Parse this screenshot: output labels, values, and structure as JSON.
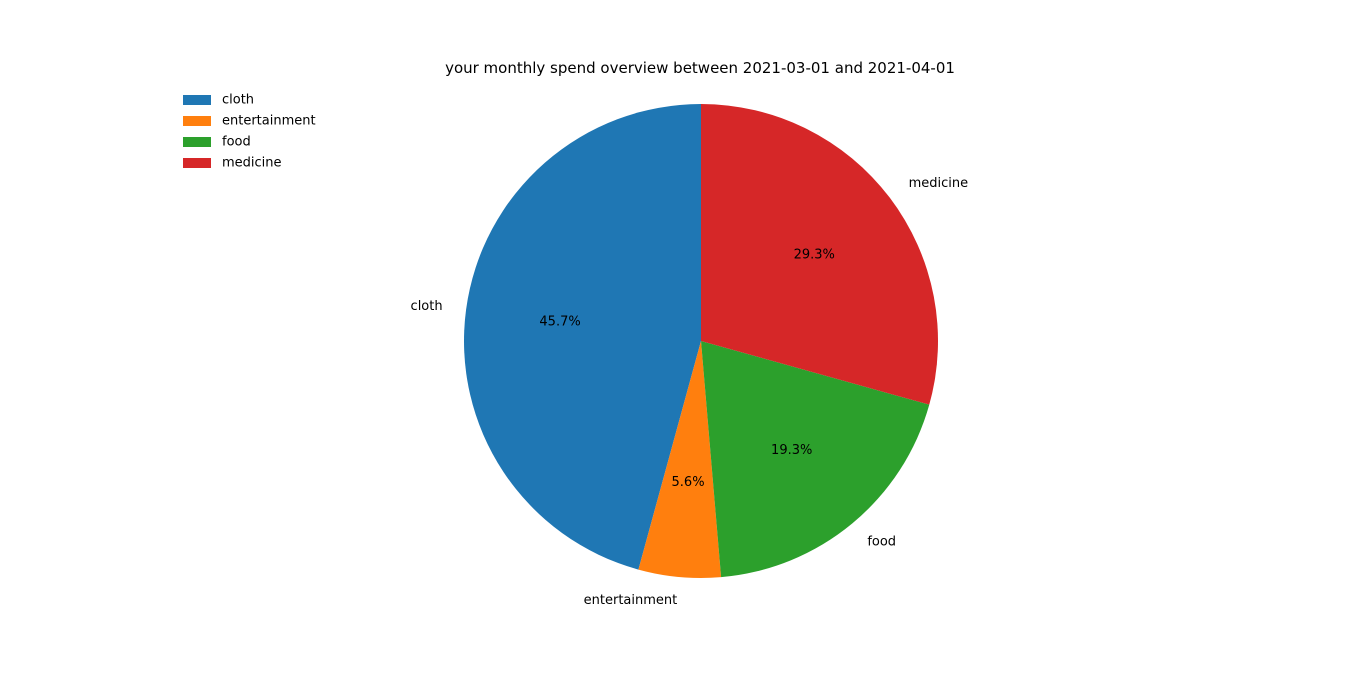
{
  "chart_data": {
    "type": "pie",
    "title": "your monthly spend overview between 2021-03-01 and 2021-04-01",
    "legend_position": "top-left",
    "start_angle_deg": 90,
    "direction": "counterclockwise",
    "slices": [
      {
        "label": "cloth",
        "pct_text": "45.7%",
        "value": 45.7,
        "color": "#1f77b4"
      },
      {
        "label": "entertainment",
        "pct_text": "5.6%",
        "value": 5.6,
        "color": "#ff7f0e"
      },
      {
        "label": "food",
        "pct_text": "19.3%",
        "value": 19.3,
        "color": "#2ca02c"
      },
      {
        "label": "medicine",
        "pct_text": "29.3%",
        "value": 29.3,
        "color": "#d62728"
      }
    ],
    "legend": [
      {
        "label": "cloth",
        "color": "#1f77b4"
      },
      {
        "label": "entertainment",
        "color": "#ff7f0e"
      },
      {
        "label": "food",
        "color": "#2ca02c"
      },
      {
        "label": "medicine",
        "color": "#d62728"
      }
    ]
  }
}
